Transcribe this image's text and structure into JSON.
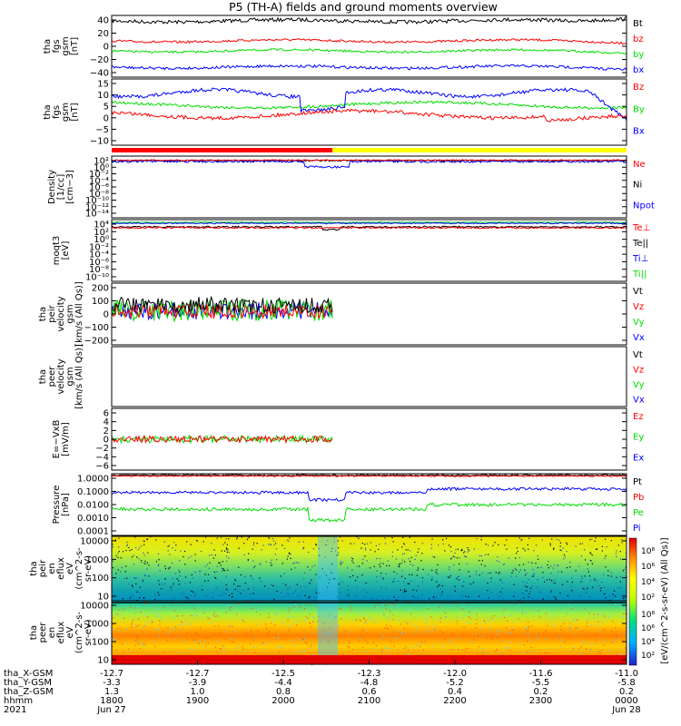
{
  "title": "P5 (TH-A) fields and ground moments overview",
  "colors": {
    "black": "#000000",
    "red": "#ff0000",
    "green": "#00dd00",
    "blue": "#0000ff",
    "yellow": "#ffff00"
  },
  "panels": [
    {
      "id": "fgs",
      "ylabel": [
        "tha",
        "fgs",
        "gsm",
        "[nT]"
      ],
      "ticks": [
        "40",
        "20",
        "0",
        "−20",
        "−40"
      ],
      "legend": [
        {
          "t": "Bt",
          "c": "black"
        },
        {
          "t": "bz",
          "c": "red"
        },
        {
          "t": "by",
          "c": "green"
        },
        {
          "t": "bx",
          "c": "blue"
        }
      ]
    },
    {
      "id": "fgs2",
      "ylabel": [
        "tha",
        "fgs",
        "gsm",
        "[nT]"
      ],
      "ticks": [
        "15",
        "10",
        "5",
        "0",
        "−5",
        "−10"
      ],
      "legend": [
        {
          "t": "Bz",
          "c": "red"
        },
        {
          "t": "By",
          "c": "green"
        },
        {
          "t": "Bx",
          "c": "blue"
        }
      ]
    },
    {
      "id": "density",
      "ylabel": [
        "Density",
        "[1/cc]",
        "[cm−3]"
      ],
      "ticks": [
        "10²",
        "10⁰",
        "10⁻²",
        "10⁻⁴",
        "10⁻⁶",
        "10⁻⁸",
        "10⁻¹⁰",
        "10⁻¹²",
        "10⁻¹⁴"
      ],
      "legend": [
        {
          "t": "Ne",
          "c": "red"
        },
        {
          "t": "Ni",
          "c": "black"
        },
        {
          "t": "Npot",
          "c": "blue"
        }
      ]
    },
    {
      "id": "temp",
      "ylabel": [
        "moqt3",
        "[eV]"
      ],
      "ticks": [
        "10⁴",
        "10²",
        "10⁰",
        "10⁻²",
        "10⁻⁴",
        "10⁻⁶",
        "10⁻⁸",
        "10⁻¹⁰"
      ],
      "legend": [
        {
          "t": "Te⊥",
          "c": "red"
        },
        {
          "t": "Te||",
          "c": "black"
        },
        {
          "t": "Ti⊥",
          "c": "blue"
        },
        {
          "t": "Ti||",
          "c": "green"
        }
      ]
    },
    {
      "id": "vel1",
      "ylabel": [
        "tha",
        "peir",
        "velocity",
        "gsm",
        "[km/s (All Qs)]"
      ],
      "ticks": [
        "200",
        "100",
        "0",
        "−100",
        "−200"
      ],
      "legend": [
        {
          "t": "Vt",
          "c": "black"
        },
        {
          "t": "Vz",
          "c": "red"
        },
        {
          "t": "Vy",
          "c": "green"
        },
        {
          "t": "Vx",
          "c": "blue"
        }
      ]
    },
    {
      "id": "vel2",
      "ylabel": [
        "tha",
        "peer",
        "velocity",
        "gsm",
        "[km/s (All Qs)]"
      ],
      "ticks": [],
      "legend": [
        {
          "t": "Vt",
          "c": "black"
        },
        {
          "t": "Vz",
          "c": "red"
        },
        {
          "t": "Vy",
          "c": "green"
        },
        {
          "t": "Vx",
          "c": "blue"
        }
      ]
    },
    {
      "id": "efield",
      "ylabel": [
        "E=−VxB",
        "[mV/m]"
      ],
      "ticks": [
        "6",
        "4",
        "2",
        "0",
        "−2",
        "−4",
        "−6"
      ],
      "legend": [
        {
          "t": "Ez",
          "c": "red"
        },
        {
          "t": "Ey",
          "c": "green"
        },
        {
          "t": "Ex",
          "c": "blue"
        }
      ]
    },
    {
      "id": "pressure",
      "ylabel": [
        "Pressure",
        "[nPa]"
      ],
      "ticks": [
        "1.0000",
        "0.1000",
        "0.0100",
        "0.0010",
        "0.0001"
      ],
      "legend": [
        {
          "t": "Pt",
          "c": "black"
        },
        {
          "t": "Pb",
          "c": "red"
        },
        {
          "t": "Pe",
          "c": "green"
        },
        {
          "t": "Pi",
          "c": "blue"
        }
      ]
    },
    {
      "id": "spec_i",
      "ylabel": [
        "tha",
        "peir",
        "en",
        "eflux",
        "eV",
        "(cm^2-s-",
        "sr-eV)"
      ],
      "ticks": [
        "10000",
        "1000",
        "100",
        "10"
      ],
      "legend": []
    },
    {
      "id": "spec_e",
      "ylabel": [
        "tha",
        "peer",
        "en",
        "eflux",
        "eV",
        "(cm^2-s-",
        "sr-eV)"
      ],
      "ticks": [
        "10000",
        "1000",
        "100",
        "10"
      ],
      "legend": []
    }
  ],
  "colorbar": {
    "label": "[eV/(cm^2-s-sr-eV) (All Qs)]",
    "upper_ticks": [
      "10⁸",
      "10⁶",
      "10⁴",
      "10²"
    ],
    "lower_ticks": [
      "10⁸",
      "10⁶",
      "10⁴",
      "10²"
    ]
  },
  "xaxis": {
    "row_labels": [
      "tha_X-GSM",
      "tha_Y-GSM",
      "tha_Z-GSM",
      "hhmm",
      "2021"
    ],
    "columns": [
      [
        "-12.7",
        "-3.3",
        "1.3",
        "1800",
        "Jun 27"
      ],
      [
        "-12.7",
        "-3.9",
        "1.0",
        "1900",
        ""
      ],
      [
        "-12.5",
        "-4.4",
        "0.8",
        "2000",
        ""
      ],
      [
        "-12.3",
        "-4.8",
        "0.6",
        "2100",
        ""
      ],
      [
        "-12.0",
        "-5.2",
        "0.4",
        "2200",
        ""
      ],
      [
        "-11.6",
        "-5.5",
        "0.2",
        "2300",
        ""
      ],
      [
        "-11.0",
        "-5.8",
        "0.2",
        "0000",
        "Jun 28"
      ]
    ]
  },
  "chart_data": [
    {
      "type": "line",
      "title": "tha fgs gsm",
      "ylim": [
        -40,
        40
      ],
      "series": [
        {
          "name": "Bt",
          "level": 33
        },
        {
          "name": "bz",
          "level": 7
        },
        {
          "name": "by",
          "level": -6
        },
        {
          "name": "bx",
          "level": -27
        }
      ]
    },
    {
      "type": "line",
      "title": "tha fgs gsm",
      "ylim": [
        -12,
        16
      ],
      "series": [
        {
          "name": "Bz",
          "level": 1
        },
        {
          "name": "By",
          "level": 5
        },
        {
          "name": "Bx",
          "level": 10
        }
      ]
    },
    {
      "type": "line",
      "title": "Density",
      "scale": "log",
      "series": [
        {
          "name": "Ne",
          "level": 1
        },
        {
          "name": "Ni",
          "level": 1
        },
        {
          "name": "Npot",
          "level": 0.5
        }
      ]
    },
    {
      "type": "line",
      "title": "moqt3",
      "scale": "log",
      "series": [
        {
          "name": "Te⊥"
        },
        {
          "name": "Te||"
        },
        {
          "name": "Ti⊥"
        },
        {
          "name": "Ti||"
        }
      ]
    },
    {
      "type": "line",
      "title": "peir velocity gsm",
      "ylim": [
        -250,
        200
      ],
      "series": [
        {
          "name": "Vt",
          "level": 40
        },
        {
          "name": "Vz",
          "level": 0
        },
        {
          "name": "Vy",
          "level": 0
        },
        {
          "name": "Vx",
          "level": 0
        }
      ]
    },
    {
      "type": "line",
      "title": "peer velocity gsm",
      "series": []
    },
    {
      "type": "line",
      "title": "E=-VxB",
      "ylim": [
        -6,
        6
      ],
      "series": [
        {
          "name": "Ez",
          "level": 0
        },
        {
          "name": "Ey",
          "level": 0
        },
        {
          "name": "Ex",
          "level": 0
        }
      ]
    },
    {
      "type": "line",
      "title": "Pressure",
      "scale": "log",
      "series": [
        {
          "name": "Pt",
          "level": 0.8
        },
        {
          "name": "Pb",
          "level": 0.7
        },
        {
          "name": "Pe",
          "level": 0.005
        },
        {
          "name": "Pi",
          "level": 0.06
        }
      ]
    },
    {
      "type": "heatmap",
      "title": "peir en eflux",
      "ylim": [
        5,
        30000
      ],
      "scale": "log"
    },
    {
      "type": "heatmap",
      "title": "peer en eflux",
      "ylim": [
        5,
        30000
      ],
      "scale": "log"
    }
  ]
}
